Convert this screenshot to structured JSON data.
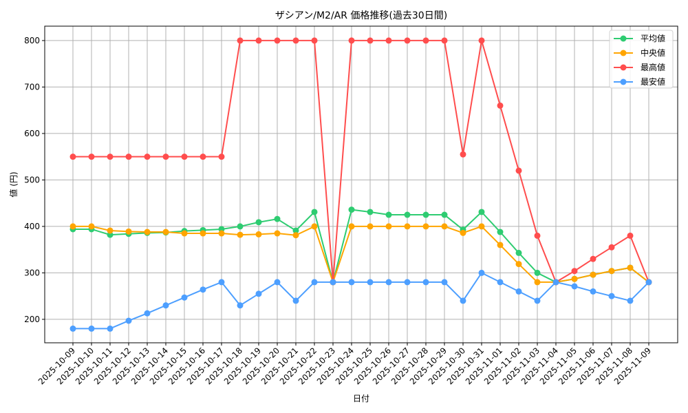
{
  "chart_data": {
    "type": "line",
    "title": "ザシアン/M2/AR 価格推移(過去30日間)",
    "xlabel": "日付",
    "ylabel": "値 (円)",
    "ylim": [
      149.5,
      831
    ],
    "yticks": [
      200,
      300,
      400,
      500,
      600,
      700,
      800
    ],
    "grid": true,
    "legend_position": "upper right",
    "categories": [
      "2025-10-09",
      "2025-10-10",
      "2025-10-11",
      "2025-10-12",
      "2025-10-13",
      "2025-10-14",
      "2025-10-15",
      "2025-10-16",
      "2025-10-17",
      "2025-10-18",
      "2025-10-19",
      "2025-10-20",
      "2025-10-21",
      "2025-10-22",
      "2025-10-23",
      "2025-10-24",
      "2025-10-25",
      "2025-10-26",
      "2025-10-27",
      "2025-10-28",
      "2025-10-29",
      "2025-10-30",
      "2025-10-31",
      "2025-11-01",
      "2025-11-02",
      "2025-11-03",
      "2025-11-04",
      "2025-11-05",
      "2025-11-06",
      "2025-11-07",
      "2025-11-08",
      "2025-11-09"
    ],
    "series": [
      {
        "name": "平均値",
        "color": "#2ecc71",
        "values": [
          394,
          394,
          382,
          384,
          386,
          387,
          390,
          392,
          394,
          400,
          409,
          416,
          391,
          431,
          280,
          436,
          431,
          425,
          425,
          425,
          425,
          393,
          431,
          388,
          343,
          300,
          280,
          287,
          296,
          304,
          311,
          280
        ]
      },
      {
        "name": "中央値",
        "color": "#ffa500",
        "values": [
          400,
          400,
          391,
          389,
          388,
          388,
          385,
          385,
          385,
          382,
          383,
          385,
          381,
          400,
          280,
          400,
          400,
          400,
          400,
          400,
          400,
          386,
          400,
          360,
          319,
          280,
          280,
          287,
          296,
          304,
          311,
          280
        ]
      },
      {
        "name": "最高値",
        "color": "#ff4d4d",
        "values": [
          550,
          550,
          550,
          550,
          550,
          550,
          550,
          550,
          550,
          800,
          800,
          800,
          800,
          800,
          280,
          800,
          800,
          800,
          800,
          800,
          800,
          555,
          800,
          660,
          520,
          380,
          280,
          304,
          330,
          355,
          380,
          280
        ]
      },
      {
        "name": "最安値",
        "color": "#4d9fff",
        "values": [
          180,
          180,
          180,
          197,
          213,
          230,
          247,
          264,
          280,
          230,
          255,
          280,
          240,
          280,
          280,
          280,
          280,
          280,
          280,
          280,
          280,
          240,
          300,
          280,
          260,
          240,
          280,
          271,
          260,
          250,
          240,
          280
        ]
      }
    ]
  }
}
